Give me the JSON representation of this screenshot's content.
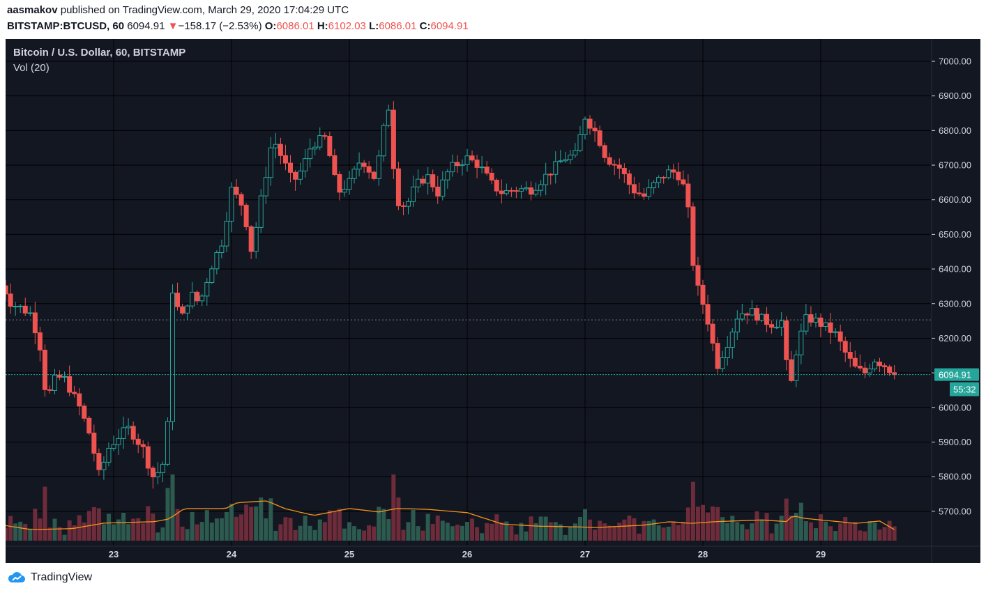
{
  "header": {
    "author": "aasmakov",
    "published_text": "published on TradingView.com, March 29, 2020 17:04:29 UTC",
    "symbol": "BITSTAMP:BTCUSD, 60",
    "last_price": "6094.91",
    "change_arrow": "▼",
    "change": "−158.17 (−2.53%)",
    "open_label": "O:",
    "open": "6086.01",
    "high_label": "H:",
    "high": "6102.03",
    "low_label": "L:",
    "low": "6086.01",
    "close_label": "C:",
    "close": "6094.91"
  },
  "legend": {
    "title": "Bitcoin / U.S. Dollar, 60, BITSTAMP",
    "volume": "Vol (20)"
  },
  "footer": {
    "brand": "TradingView",
    "logo_icon": "tradingview-cloud-logo-icon"
  },
  "colors": {
    "background": "#131722",
    "grid": "#000000",
    "up": "#26a69a",
    "down": "#ef5350",
    "volume_up": "#2d5a4f",
    "volume_down": "#6e2c3a",
    "volume_ma": "#f7931a",
    "axis_text": "#d1d4dc",
    "price_tag": "#26a69a"
  },
  "chart_data": {
    "type": "candlestick",
    "title": "Bitcoin / U.S. Dollar, 60, BITSTAMP",
    "timeframe": "60",
    "y_axis": {
      "ticks": [
        "7000.00",
        "6900.00",
        "6800.00",
        "6700.00",
        "6600.00",
        "6500.00",
        "6400.00",
        "6300.00",
        "6200.00",
        "6100.00",
        "6000.00",
        "5900.00",
        "5800.00",
        "5700.00"
      ],
      "ylim": [
        5620,
        7060
      ]
    },
    "x_axis": {
      "ticks": [
        "23",
        "24",
        "25",
        "26",
        "27",
        "28",
        "29"
      ]
    },
    "last_price_tag": "6094.91",
    "countdown_tag": "55:32",
    "previous_close_line": 6253,
    "anchors": [
      [
        "22.00",
        6310
      ],
      [
        "22.05",
        6360
      ],
      [
        "22.13",
        6300
      ],
      [
        "22.20",
        6290
      ],
      [
        "22.30",
        6270
      ],
      [
        "22.38",
        6170
      ],
      [
        "22.43",
        6020
      ],
      [
        "22.50",
        6080
      ],
      [
        "22.57",
        6090
      ],
      [
        "22.65",
        6040
      ],
      [
        "22.71",
        6000
      ],
      [
        "22.80",
        5920
      ],
      [
        "22.88",
        5800
      ],
      [
        "22.95",
        5880
      ],
      [
        "23.05",
        5920
      ],
      [
        "23.13",
        5940
      ],
      [
        "23.25",
        5880
      ],
      [
        "23.33",
        5800
      ],
      [
        "23.40",
        5820
      ],
      [
        "23.45",
        5870
      ],
      [
        "23.50",
        6340
      ],
      [
        "23.57",
        6250
      ],
      [
        "23.65",
        6330
      ],
      [
        "23.73",
        6300
      ],
      [
        "23.82",
        6400
      ],
      [
        "23.92",
        6480
      ],
      [
        "24.00",
        6630
      ],
      [
        "24.10",
        6580
      ],
      [
        "24.17",
        6450
      ],
      [
        "24.25",
        6600
      ],
      [
        "24.35",
        6780
      ],
      [
        "24.43",
        6720
      ],
      [
        "24.52",
        6650
      ],
      [
        "24.60",
        6690
      ],
      [
        "24.68",
        6760
      ],
      [
        "24.80",
        6780
      ],
      [
        "24.90",
        6620
      ],
      [
        "25.00",
        6650
      ],
      [
        "25.10",
        6720
      ],
      [
        "25.22",
        6660
      ],
      [
        "25.33",
        6880
      ],
      [
        "25.40",
        6600
      ],
      [
        "25.48",
        6580
      ],
      [
        "25.56",
        6640
      ],
      [
        "25.66",
        6670
      ],
      [
        "25.75",
        6620
      ],
      [
        "25.85",
        6690
      ],
      [
        "26.00",
        6720
      ],
      [
        "26.10",
        6700
      ],
      [
        "26.22",
        6640
      ],
      [
        "26.30",
        6620
      ],
      [
        "26.40",
        6630
      ],
      [
        "26.55",
        6630
      ],
      [
        "26.70",
        6680
      ],
      [
        "26.82",
        6720
      ],
      [
        "26.92",
        6730
      ],
      [
        "27.00",
        6840
      ],
      [
        "27.10",
        6790
      ],
      [
        "27.18",
        6720
      ],
      [
        "27.30",
        6690
      ],
      [
        "27.40",
        6630
      ],
      [
        "27.50",
        6610
      ],
      [
        "27.60",
        6650
      ],
      [
        "27.70",
        6680
      ],
      [
        "27.78",
        6680
      ],
      [
        "27.86",
        6620
      ],
      [
        "27.93",
        6370
      ],
      [
        "28.00",
        6300
      ],
      [
        "28.05",
        6240
      ],
      [
        "28.12",
        6120
      ],
      [
        "28.20",
        6180
      ],
      [
        "28.30",
        6270
      ],
      [
        "28.40",
        6280
      ],
      [
        "28.52",
        6250
      ],
      [
        "28.60",
        6240
      ],
      [
        "28.68",
        6250
      ],
      [
        "28.73",
        6030
      ],
      [
        "28.80",
        6180
      ],
      [
        "28.88",
        6260
      ],
      [
        "28.96",
        6250
      ],
      [
        "29.05",
        6230
      ],
      [
        "29.13",
        6210
      ],
      [
        "29.22",
        6150
      ],
      [
        "29.30",
        6110
      ],
      [
        "29.38",
        6100
      ],
      [
        "29.45",
        6140
      ],
      [
        "29.55",
        6120
      ],
      [
        "29.63",
        6094.91
      ]
    ],
    "volume_ma_anchors": [
      [
        "22.00",
        5663
      ],
      [
        "22.30",
        5647
      ],
      [
        "22.65",
        5650
      ],
      [
        "22.92",
        5666
      ],
      [
        "23.35",
        5670
      ],
      [
        "23.47",
        5678
      ],
      [
        "23.60",
        5708
      ],
      [
        "23.95",
        5708
      ],
      [
        "24.05",
        5725
      ],
      [
        "24.30",
        5730
      ],
      [
        "24.45",
        5708
      ],
      [
        "24.70",
        5688
      ],
      [
        "25.00",
        5708
      ],
      [
        "25.25",
        5698
      ],
      [
        "25.40",
        5708
      ],
      [
        "25.65",
        5706
      ],
      [
        "26.00",
        5696
      ],
      [
        "26.30",
        5663
      ],
      [
        "26.60",
        5657
      ],
      [
        "26.92",
        5655
      ],
      [
        "27.10",
        5653
      ],
      [
        "27.50",
        5660
      ],
      [
        "27.72",
        5670
      ],
      [
        "27.90",
        5665
      ],
      [
        "28.10",
        5670
      ],
      [
        "28.50",
        5675
      ],
      [
        "28.72",
        5670
      ],
      [
        "28.76",
        5688
      ],
      [
        "28.85",
        5680
      ],
      [
        "29.30",
        5665
      ],
      [
        "29.50",
        5672
      ],
      [
        "29.63",
        5646
      ]
    ]
  }
}
